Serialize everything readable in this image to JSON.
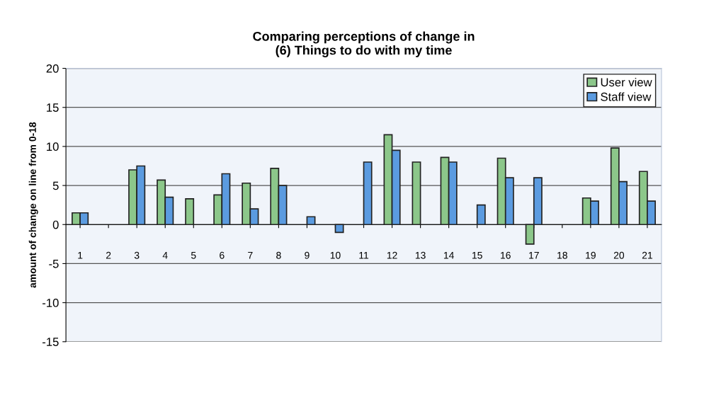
{
  "chart_data": {
    "type": "bar",
    "title": "Comparing perceptions of change in\n(6) Things to do with my time",
    "ylabel": "amount of change on line from 0-18",
    "categories": [
      "1",
      "2",
      "3",
      "4",
      "5",
      "6",
      "7",
      "8",
      "9",
      "10",
      "11",
      "12",
      "13",
      "14",
      "15",
      "16",
      "17",
      "18",
      "19",
      "20",
      "21"
    ],
    "series": [
      {
        "name": "User view",
        "color": "#8cc78a",
        "values": [
          1.5,
          null,
          7.0,
          5.7,
          3.3,
          3.8,
          5.3,
          7.2,
          null,
          null,
          null,
          11.5,
          8.0,
          8.6,
          null,
          8.5,
          -2.5,
          null,
          3.4,
          9.8,
          6.8
        ]
      },
      {
        "name": "Staff view",
        "color": "#5b9be0",
        "values": [
          1.5,
          null,
          7.5,
          3.5,
          null,
          6.5,
          2.0,
          5.0,
          1.0,
          -1.0,
          8.0,
          9.5,
          null,
          8.0,
          2.5,
          6.0,
          6.0,
          null,
          3.0,
          5.5,
          3.0
        ]
      }
    ],
    "ylim": [
      -15,
      20
    ],
    "yticks": [
      -15,
      -10,
      -5,
      0,
      5,
      10,
      15,
      20
    ],
    "grid": "y",
    "legend": "top right"
  }
}
